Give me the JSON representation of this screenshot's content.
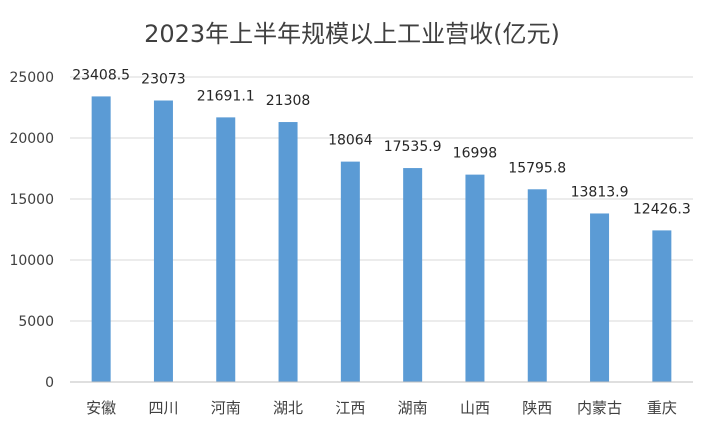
{
  "chart_data": {
    "type": "bar",
    "title": "2023年上半年规模以上工业营收(亿元)",
    "categories": [
      "安徽",
      "四川",
      "河南",
      "湖北",
      "江西",
      "湖南",
      "山西",
      "陕西",
      "内蒙古",
      "重庆"
    ],
    "values": [
      23408.5,
      23073,
      21691.1,
      21308,
      18064,
      17535.9,
      16998,
      15795.8,
      13813.9,
      12426.3
    ],
    "data_labels": [
      "23408.5",
      "23073",
      "21691.1",
      "21308",
      "18064",
      "17535.9",
      "16998",
      "15795.8",
      "13813.9",
      "12426.3"
    ],
    "y_ticks": [
      "0",
      "5000",
      "10000",
      "15000",
      "20000",
      "25000"
    ],
    "ylim": [
      0,
      25000
    ],
    "grid": true,
    "bar_color": "#5b9bd5"
  }
}
